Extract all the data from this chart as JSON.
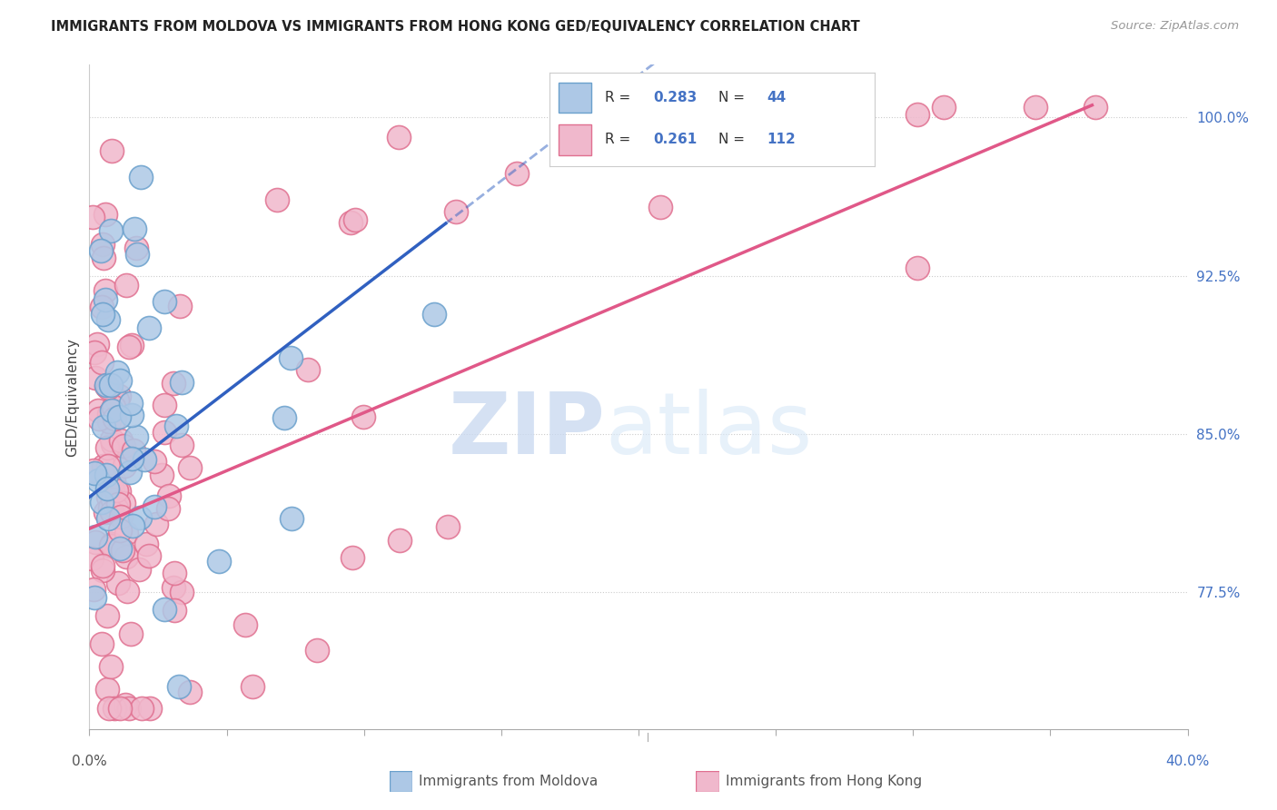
{
  "title": "IMMIGRANTS FROM MOLDOVA VS IMMIGRANTS FROM HONG KONG GED/EQUIVALENCY CORRELATION CHART",
  "source": "Source: ZipAtlas.com",
  "ylabel": "GED/Equivalency",
  "xmin": 0.0,
  "xmax": 40.0,
  "ymin": 71.0,
  "ymax": 102.5,
  "xleft_label": "0.0%",
  "xright_label": "40.0%",
  "ytick_vals": [
    77.5,
    85.0,
    92.5,
    100.0
  ],
  "ytick_labels": [
    "77.5%",
    "85.0%",
    "92.5%",
    "100.0%"
  ],
  "moldova_color": "#adc8e6",
  "moldova_edge": "#6aa0cc",
  "hk_color": "#f0b8cc",
  "hk_edge": "#e07090",
  "moldova_line_color": "#3060c0",
  "hk_line_color": "#e05888",
  "moldova_R": "0.283",
  "moldova_N": "44",
  "hk_R": "0.261",
  "hk_N": "112",
  "legend_label_moldova": "Immigrants from Moldova",
  "legend_label_hk": "Immigrants from Hong Kong",
  "watermark_zip": "ZIP",
  "watermark_atlas": "atlas"
}
